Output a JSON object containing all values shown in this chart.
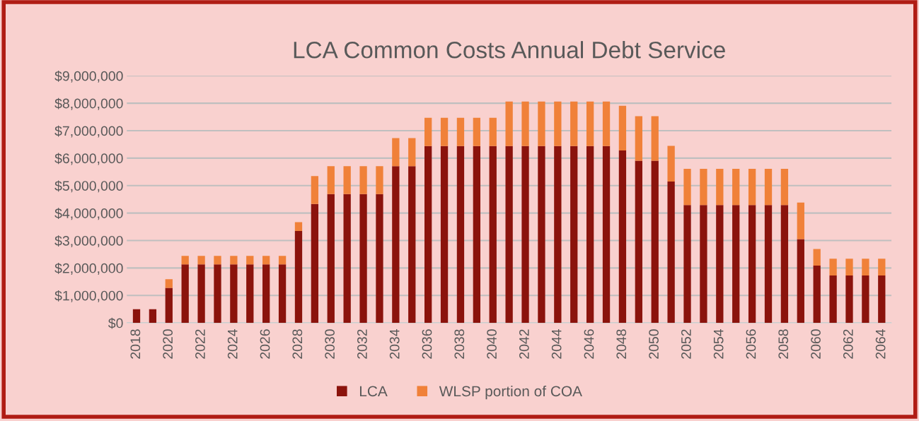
{
  "chart_data": {
    "type": "bar",
    "title": "LCA Common Costs Annual Debt Service",
    "stacked": true,
    "grid": "y",
    "legend": "bottom",
    "categories": [
      "2018",
      null,
      "2020",
      null,
      "2022",
      null,
      "2024",
      null,
      "2026",
      null,
      "2028",
      null,
      "2030",
      null,
      "2032",
      null,
      "2034",
      null,
      "2036",
      null,
      "2038",
      null,
      "2040",
      null,
      "2042",
      null,
      "2044",
      null,
      "2046",
      null,
      "2048",
      null,
      "2050",
      null,
      "2052",
      null,
      "2054",
      null,
      "2056",
      null,
      "2058",
      null,
      "2060",
      null,
      "2062",
      null,
      "2064"
    ],
    "series": [
      {
        "name": "LCA",
        "color": "#8b130c",
        "values": [
          500000,
          500000,
          1280000,
          2130000,
          2130000,
          2130000,
          2130000,
          2130000,
          2130000,
          2130000,
          3350000,
          4330000,
          4690000,
          4690000,
          4690000,
          4690000,
          5710000,
          5710000,
          6440000,
          6440000,
          6440000,
          6440000,
          6440000,
          6440000,
          6440000,
          6440000,
          6440000,
          6440000,
          6440000,
          6440000,
          6280000,
          5910000,
          5910000,
          5150000,
          4290000,
          4290000,
          4290000,
          4290000,
          4290000,
          4290000,
          4290000,
          3050000,
          2090000,
          1730000,
          1730000,
          1730000,
          1730000
        ]
      },
      {
        "name": "WLSP portion of COA",
        "color": "#f08139",
        "values": [
          0,
          0,
          310000,
          310000,
          310000,
          310000,
          310000,
          310000,
          310000,
          310000,
          320000,
          1020000,
          1020000,
          1020000,
          1020000,
          1020000,
          1020000,
          1020000,
          1030000,
          1030000,
          1030000,
          1030000,
          1030000,
          1620000,
          1620000,
          1620000,
          1620000,
          1620000,
          1620000,
          1620000,
          1630000,
          1620000,
          1620000,
          1300000,
          1320000,
          1320000,
          1320000,
          1320000,
          1320000,
          1320000,
          1320000,
          1330000,
          600000,
          610000,
          610000,
          610000,
          610000
        ]
      }
    ],
    "ylim": [
      0,
      9000000
    ],
    "yticks": [
      {
        "value": 0,
        "label": "$0"
      },
      {
        "value": 1000000,
        "label": "$1,000,000"
      },
      {
        "value": 2000000,
        "label": "$2,000,000"
      },
      {
        "value": 3000000,
        "label": "$3,000,000"
      },
      {
        "value": 4000000,
        "label": "$4,000,000"
      },
      {
        "value": 5000000,
        "label": "$5,000,000"
      },
      {
        "value": 6000000,
        "label": "$6,000,000"
      },
      {
        "value": 7000000,
        "label": "$7,000,000"
      },
      {
        "value": 8000000,
        "label": "$8,000,000"
      },
      {
        "value": 9000000,
        "label": "$9,000,000"
      }
    ]
  }
}
